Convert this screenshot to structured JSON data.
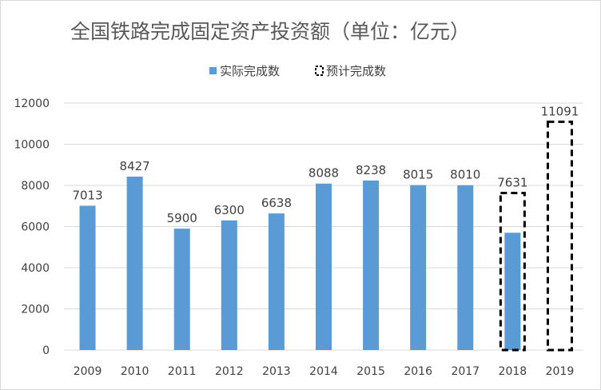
{
  "chart_data": {
    "type": "bar",
    "title": "全国铁路完成固定资产投资额（单位：亿元）",
    "categories": [
      "2009",
      "2010",
      "2011",
      "2012",
      "2013",
      "2014",
      "2015",
      "2016",
      "2017",
      "2018",
      "2019"
    ],
    "series": [
      {
        "name": "实际完成数",
        "values": [
          7013,
          8427,
          5900,
          6300,
          6638,
          8088,
          8238,
          8015,
          8010,
          5700,
          null
        ],
        "color": "#5b9bd5",
        "style": "solid"
      },
      {
        "name": "预计完成数",
        "values": [
          null,
          null,
          null,
          null,
          null,
          null,
          null,
          null,
          null,
          7631,
          11091
        ],
        "color": "#000000",
        "style": "dashed-outline"
      }
    ],
    "data_labels": [
      "7013",
      "8427",
      "5900",
      "6300",
      "6638",
      "8088",
      "8238",
      "8015",
      "8010",
      "7631",
      "11091"
    ],
    "yticks": [
      "0",
      "2000",
      "4000",
      "6000",
      "8000",
      "10000",
      "12000"
    ],
    "ylim": [
      0,
      12000
    ],
    "grid": true,
    "legend_position": "top-center"
  }
}
